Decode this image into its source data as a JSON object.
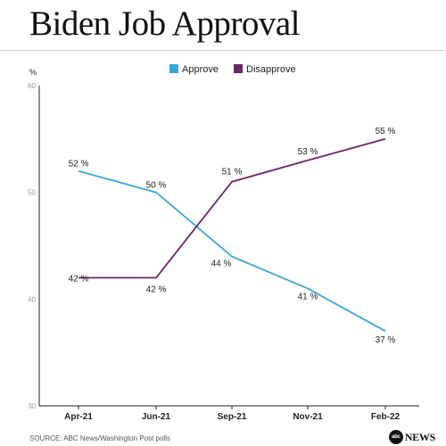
{
  "header": {
    "title": "Biden Job Approval"
  },
  "footer": {
    "source": "SOURCE: ABC News/Washington Post polls",
    "logo_ball": "abc",
    "logo_news": "NEWS"
  },
  "chart_data": {
    "type": "line",
    "title": "Biden Job Approval",
    "ylabel": "%",
    "xlabel": "",
    "categories": [
      "Apr-21",
      "Jun-21",
      "Sep-21",
      "Nov-21",
      "Feb-22"
    ],
    "ylim": [
      30,
      60
    ],
    "yticks": [
      30,
      40,
      50,
      60
    ],
    "grid": false,
    "legend": "top-center",
    "series": [
      {
        "name": "Approve",
        "color": "#3aa7d9",
        "values": [
          52,
          50,
          44,
          41,
          37
        ],
        "labels": [
          "52 %",
          "50 %",
          "44 %",
          "41 %",
          "37 %"
        ]
      },
      {
        "name": "Disapprove",
        "color": "#6b2569",
        "values": [
          42,
          42,
          51,
          53,
          55
        ],
        "labels": [
          "42 %",
          "42 %",
          "51 %",
          "53 %",
          "55 %"
        ]
      }
    ]
  }
}
